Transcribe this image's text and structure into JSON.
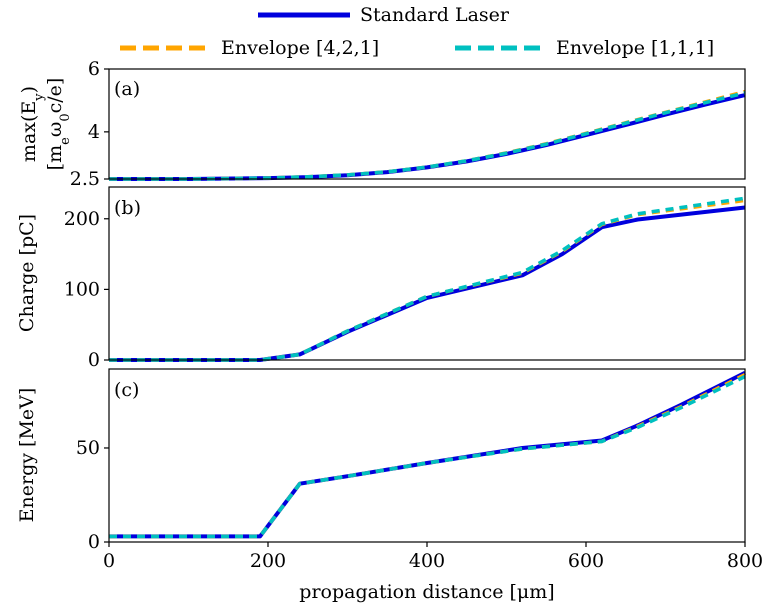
{
  "chart_data": {
    "type": "line",
    "shared_x": true,
    "xlabel": "propagation distance [μm]",
    "xlim": [
      0,
      800
    ],
    "xticks": [
      0,
      200,
      400,
      600,
      800
    ],
    "legend": {
      "placement": "top",
      "entries": [
        {
          "label": "Standard Laser",
          "color": "#0000dd",
          "style": "solid"
        },
        {
          "label": "Envelope [4,2,1]",
          "color": "#ffa500",
          "style": "dashed"
        },
        {
          "label": "Envelope [1,1,1]",
          "color": "#00c0c0",
          "style": "dashed"
        }
      ]
    },
    "panels": [
      {
        "tag": "(a)",
        "ylabel_line1": "max(E",
        "ylabel_line1_sub": "y",
        "ylabel_line1_end": ")",
        "ylabel_line2": "[m",
        "ylabel_line2_sub": "e",
        "ylabel_line2_mid": "ω",
        "ylabel_line2_sub2": "0",
        "ylabel_line2_end": "c/e]",
        "ylim": [
          2.5,
          6
        ],
        "yticks": [
          2.5,
          4,
          6
        ],
        "ytick_labels": [
          "2.5",
          "4",
          "6"
        ],
        "series": [
          {
            "color": "#0000dd",
            "style": "solid",
            "x": [
              0,
              100,
              200,
              250,
              300,
              350,
              400,
              450,
              500,
              550,
              600,
              650,
              700,
              750,
              800
            ],
            "y": [
              2.5,
              2.5,
              2.53,
              2.56,
              2.62,
              2.72,
              2.87,
              3.06,
              3.3,
              3.58,
              3.9,
              4.22,
              4.55,
              4.87,
              5.17
            ]
          },
          {
            "color": "#ffa500",
            "style": "dashed",
            "x": [
              0,
              100,
              200,
              250,
              300,
              350,
              400,
              450,
              500,
              550,
              600,
              650,
              700,
              750,
              800
            ],
            "y": [
              2.5,
              2.5,
              2.53,
              2.57,
              2.63,
              2.73,
              2.88,
              3.08,
              3.33,
              3.62,
              3.95,
              4.29,
              4.62,
              4.95,
              5.28
            ]
          },
          {
            "color": "#00c0c0",
            "style": "dashed",
            "x": [
              0,
              100,
              200,
              250,
              300,
              350,
              400,
              450,
              500,
              550,
              600,
              650,
              700,
              750,
              800
            ],
            "y": [
              2.5,
              2.5,
              2.53,
              2.57,
              2.63,
              2.73,
              2.88,
              3.08,
              3.32,
              3.61,
              3.94,
              4.28,
              4.61,
              4.93,
              5.24
            ]
          }
        ]
      },
      {
        "tag": "(b)",
        "ylabel": "Charge [pC]",
        "ylim": [
          0,
          245
        ],
        "yticks": [
          0,
          100,
          200
        ],
        "ytick_labels": [
          "0",
          "100",
          "200"
        ],
        "series": [
          {
            "color": "#0000dd",
            "style": "solid",
            "x": [
              0,
              190,
              240,
              300,
              400,
              520,
              570,
              620,
              665,
              800
            ],
            "y": [
              0,
              0,
              8,
              40,
              88,
              120,
              150,
              188,
              199,
              216
            ]
          },
          {
            "color": "#ffa500",
            "style": "dashed",
            "x": [
              0,
              190,
              240,
              300,
              400,
              520,
              570,
              620,
              665,
              800
            ],
            "y": [
              0,
              0,
              8,
              41,
              90,
              123,
              154,
              192,
              206,
              226
            ]
          },
          {
            "color": "#00c0c0",
            "style": "dashed",
            "x": [
              0,
              190,
              240,
              300,
              400,
              520,
              570,
              620,
              665,
              800
            ],
            "y": [
              0,
              0,
              8,
              41,
              90,
              124,
              155,
              193,
              207,
              229
            ]
          }
        ]
      },
      {
        "tag": "(c)",
        "ylabel": "Energy [MeV]",
        "ylim": [
          0,
          92
        ],
        "yticks": [
          0,
          50
        ],
        "ytick_labels": [
          "0",
          "50"
        ],
        "series": [
          {
            "color": "#0000dd",
            "style": "solid",
            "x": [
              0,
              190,
              240,
              300,
              400,
              520,
              620,
              665,
              720,
              800
            ],
            "y": [
              3,
              3,
              31,
              35,
              42,
              50,
              54,
              62,
              73,
              90
            ]
          },
          {
            "color": "#ffa500",
            "style": "dashed",
            "x": [
              0,
              190,
              240,
              300,
              400,
              520,
              620,
              665,
              720,
              800
            ],
            "y": [
              3,
              3,
              31,
              35,
              42,
              49.5,
              53.5,
              61.5,
              72,
              89
            ]
          },
          {
            "color": "#00c0c0",
            "style": "dashed",
            "x": [
              0,
              190,
              240,
              300,
              400,
              520,
              620,
              665,
              720,
              800
            ],
            "y": [
              3,
              3,
              31,
              35,
              42,
              49.5,
              53.5,
              61,
              71.5,
              88
            ]
          }
        ]
      }
    ]
  }
}
